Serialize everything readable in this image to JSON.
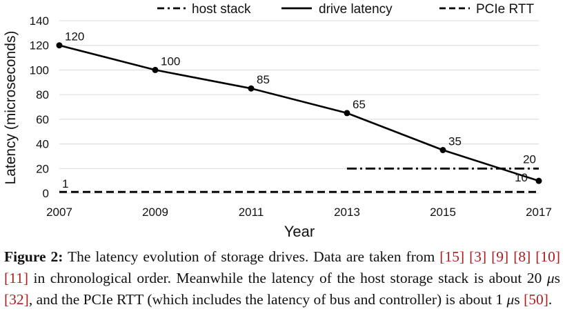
{
  "chart_data": {
    "type": "line",
    "xlabel": "Year",
    "ylabel": "Latency (microseconds)",
    "x": [
      2007,
      2009,
      2011,
      2013,
      2015,
      2017
    ],
    "xticks": [
      "2007",
      "2009",
      "2011",
      "2013",
      "2015",
      "2017"
    ],
    "yticks": [
      "0",
      "20",
      "40",
      "60",
      "80",
      "100",
      "120",
      "140"
    ],
    "xlim": [
      2007,
      2017
    ],
    "ylim": [
      0,
      140
    ],
    "grid": "horizontal",
    "legend_position": "top",
    "series": [
      {
        "name": "drive latency",
        "style": "solid",
        "markers": true,
        "x": [
          2007,
          2009,
          2011,
          2013,
          2015,
          2017
        ],
        "values": [
          120,
          100,
          85,
          65,
          35,
          10
        ],
        "labels": [
          "120",
          "100",
          "85",
          "65",
          "35",
          "10"
        ]
      },
      {
        "name": "host stack",
        "style": "dashdot",
        "markers": false,
        "x": [
          2013,
          2017
        ],
        "values": [
          20,
          20
        ],
        "labels": [
          "20"
        ]
      },
      {
        "name": "PCIe RTT",
        "style": "dashed",
        "markers": false,
        "x": [
          2007,
          2017
        ],
        "values": [
          1,
          1
        ],
        "labels": [
          "1"
        ]
      }
    ],
    "legend": [
      "host stack",
      "drive latency",
      "PCIe RTT"
    ]
  },
  "caption": {
    "label": "Figure 2:",
    "parts": [
      " The latency evolution of storage drives. Data are taken from ",
      "[15]",
      " ",
      "[3]",
      " ",
      "[9]",
      " ",
      "[8]",
      " ",
      "[10]",
      " ",
      "[11]",
      " in chronological order. Meanwhile the latency of the host storage stack is about 20 ",
      "μ",
      "s ",
      "[32]",
      ", and the PCIe RTT (which includes the latency of bus and controller) is about 1 ",
      "μ",
      "s ",
      "[50]",
      "."
    ]
  },
  "colors": {
    "line": "#000000",
    "grid": "#d9d9d9",
    "citation": "#b01c1c",
    "text": "#111111"
  }
}
